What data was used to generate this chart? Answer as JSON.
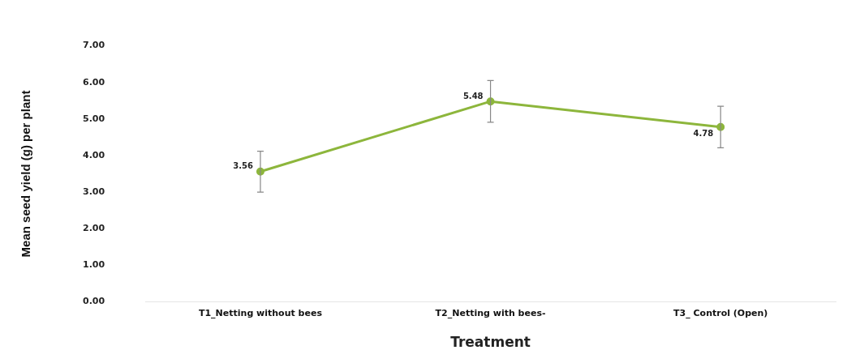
{
  "chart_data": {
    "type": "line",
    "xlabel": "Treatment",
    "ylabel": "Mean seed yield (g) per plant",
    "categories": [
      "T1_Netting without bees",
      "T2_Netting with bees-",
      "T3_ Control (Open)"
    ],
    "series": [
      {
        "color": "#8db63c",
        "values": [
          3.56,
          5.48,
          4.78
        ],
        "errors": [
          0.56,
          0.57,
          0.57
        ]
      }
    ],
    "data_labels": true,
    "marker": "circle",
    "grid": false,
    "legend": false,
    "ylim": [
      0,
      7
    ],
    "yticks": [
      {
        "value": 0,
        "label": "0.00"
      },
      {
        "value": 1,
        "label": "1.00"
      },
      {
        "value": 2,
        "label": "2.00"
      },
      {
        "value": 3,
        "label": "3.00"
      },
      {
        "value": 4,
        "label": "4.00"
      },
      {
        "value": 5,
        "label": "5.00"
      },
      {
        "value": 6,
        "label": "6.00"
      },
      {
        "value": 7,
        "label": "7.00"
      }
    ]
  }
}
